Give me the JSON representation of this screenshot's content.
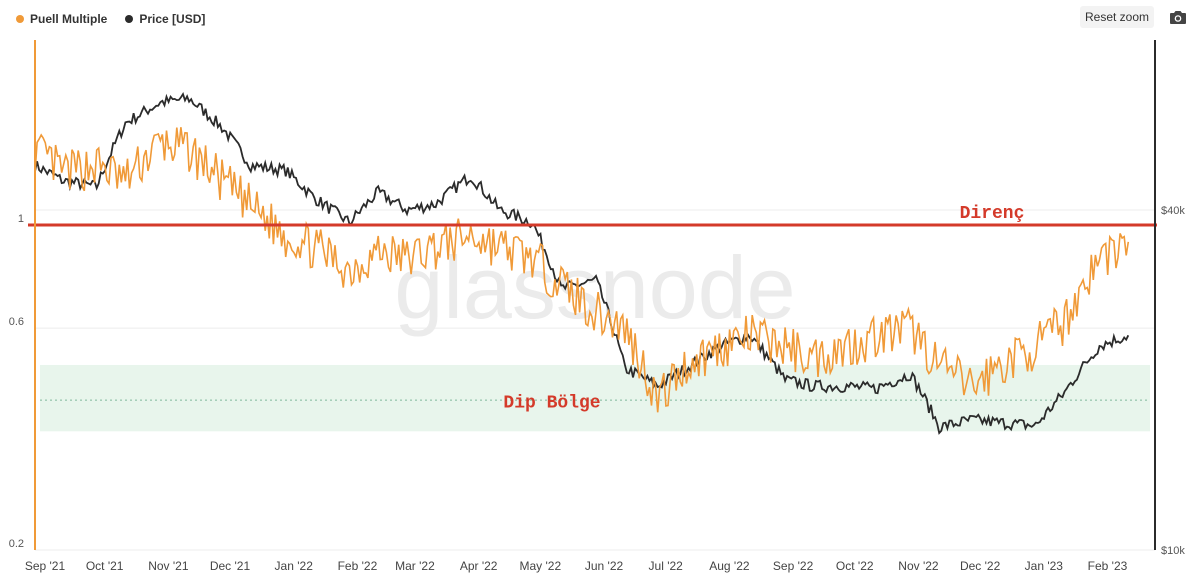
{
  "legend": [
    {
      "label": "Puell Multiple",
      "color": "#f09a38"
    },
    {
      "label": "Price [USD]",
      "color": "#2b2b2b"
    }
  ],
  "toolbar": {
    "reset_zoom": "Reset zoom",
    "camera_icon": "camera-icon"
  },
  "watermark": "glassnode",
  "annotations": {
    "resistance": "Direnç",
    "dip_zone": "Dip Bölge",
    "color": "#d43a2a"
  },
  "chart_data": {
    "type": "line",
    "x_ticks": [
      "Sep '21",
      "Oct '21",
      "Nov '21",
      "Dec '21",
      "Jan '22",
      "Feb '22",
      "Mar '22",
      "Apr '22",
      "May '22",
      "Jun '22",
      "Jul '22",
      "Aug '22",
      "Sep '22",
      "Oct '22",
      "Nov '22",
      "Dec '22",
      "Jan '23",
      "Feb '23"
    ],
    "left_axis": {
      "scale": "log",
      "ticks": [
        "0.2",
        "0.6",
        "1"
      ],
      "tick_values": [
        0.2,
        0.6,
        1
      ],
      "range": [
        0.2,
        2.5
      ]
    },
    "right_axis": {
      "scale": "log",
      "ticks": [
        "$10k",
        "$40k"
      ],
      "tick_values": [
        10000,
        40000
      ],
      "range": [
        10000,
        80000
      ]
    },
    "resistance_line": {
      "value": 1,
      "color": "#d43a2a"
    },
    "dip_zone": {
      "range": [
        0.36,
        0.5
      ],
      "midline": 0.42,
      "color": "#e8f5ec"
    },
    "series": [
      {
        "name": "Puell Multiple",
        "axis": "left",
        "color": "#f09a38",
        "x": [
          "2021-09-01",
          "2021-09-15",
          "2021-10-01",
          "2021-10-15",
          "2021-11-01",
          "2021-11-15",
          "2021-12-01",
          "2021-12-15",
          "2022-01-01",
          "2022-01-15",
          "2022-02-01",
          "2022-02-15",
          "2022-03-01",
          "2022-03-15",
          "2022-04-01",
          "2022-04-15",
          "2022-05-01",
          "2022-05-15",
          "2022-06-01",
          "2022-06-15",
          "2022-07-01",
          "2022-07-15",
          "2022-08-01",
          "2022-08-15",
          "2022-09-01",
          "2022-09-15",
          "2022-10-01",
          "2022-10-15",
          "2022-11-01",
          "2022-11-15",
          "2022-12-01",
          "2022-12-15",
          "2023-01-01",
          "2023-01-15",
          "2023-02-01",
          "2023-02-15"
        ],
        "values": [
          1.45,
          1.3,
          1.35,
          1.25,
          1.5,
          1.45,
          1.25,
          1.1,
          0.95,
          0.9,
          0.8,
          0.88,
          0.85,
          0.9,
          0.95,
          0.9,
          0.85,
          0.75,
          0.65,
          0.6,
          0.42,
          0.5,
          0.55,
          0.58,
          0.55,
          0.52,
          0.55,
          0.58,
          0.6,
          0.5,
          0.45,
          0.5,
          0.55,
          0.62,
          0.85,
          0.92
        ]
      },
      {
        "name": "Price [USD]",
        "axis": "right",
        "color": "#2b2b2b",
        "x": [
          "2021-09-01",
          "2021-09-15",
          "2021-10-01",
          "2021-10-15",
          "2021-11-01",
          "2021-11-15",
          "2021-12-01",
          "2021-12-15",
          "2022-01-01",
          "2022-01-15",
          "2022-02-01",
          "2022-02-15",
          "2022-03-01",
          "2022-03-15",
          "2022-04-01",
          "2022-04-15",
          "2022-05-01",
          "2022-05-15",
          "2022-06-01",
          "2022-06-15",
          "2022-07-01",
          "2022-07-15",
          "2022-08-01",
          "2022-08-15",
          "2022-09-01",
          "2022-09-15",
          "2022-10-01",
          "2022-10-15",
          "2022-11-01",
          "2022-11-15",
          "2022-12-01",
          "2022-12-15",
          "2023-01-01",
          "2023-01-15",
          "2023-02-01",
          "2023-02-15"
        ],
        "values": [
          48000,
          45000,
          44000,
          57000,
          62000,
          63000,
          56000,
          48000,
          47000,
          42000,
          38000,
          43000,
          40000,
          41000,
          46000,
          40000,
          38000,
          29000,
          30000,
          21000,
          19500,
          21000,
          23000,
          24000,
          20000,
          19500,
          19500,
          19300,
          20500,
          16500,
          17000,
          16800,
          16600,
          19000,
          23000,
          24000
        ]
      }
    ]
  }
}
